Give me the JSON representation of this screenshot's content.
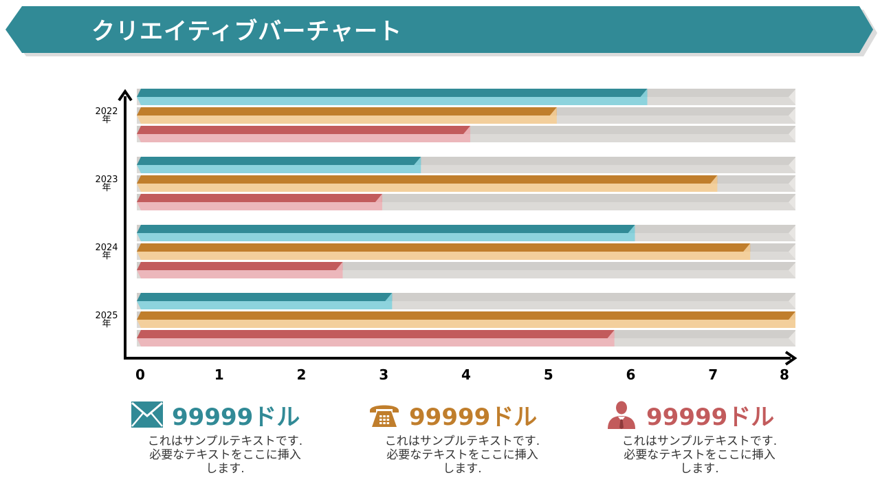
{
  "header": {
    "title": "クリエイティブバーチャート",
    "color": "#318a96"
  },
  "chart_data": {
    "type": "bar",
    "orientation": "horizontal",
    "categories": [
      "2022年",
      "2023年",
      "2024年",
      "2025年"
    ],
    "series": [
      {
        "values": [
          6.2,
          3.45,
          6.05,
          3.1
        ],
        "color": "#318a96",
        "light": "#8dd3dd"
      },
      {
        "values": [
          5.1,
          7.05,
          7.45,
          8.0
        ],
        "color": "#c07e2c",
        "light": "#f3cf9c"
      },
      {
        "values": [
          4.05,
          2.98,
          2.5,
          5.8
        ],
        "color": "#c25b5c",
        "light": "#ecb7bb"
      }
    ],
    "x_ticks": [
      "0",
      "1",
      "2",
      "3",
      "4",
      "5",
      "6",
      "7",
      "8"
    ],
    "xlim": [
      0,
      8
    ],
    "track_color": "#dcdad7"
  },
  "cards": [
    {
      "icon": "envelope-icon",
      "value": "99999ドル",
      "color": "#318a96",
      "lines": [
        "これはサンプルテキストです.",
        "必要なテキストをここに挿入",
        "します."
      ]
    },
    {
      "icon": "telephone-icon",
      "value": "99999ドル",
      "color": "#c07e2c",
      "lines": [
        "これはサンプルテキストです.",
        "必要なテキストをここに挿入",
        "します."
      ]
    },
    {
      "icon": "businessman-icon",
      "value": "99999ドル",
      "color": "#c25b5c",
      "lines": [
        "これはサンプルテキストです.",
        "必要なテキストをここに挿入",
        "します."
      ]
    }
  ]
}
